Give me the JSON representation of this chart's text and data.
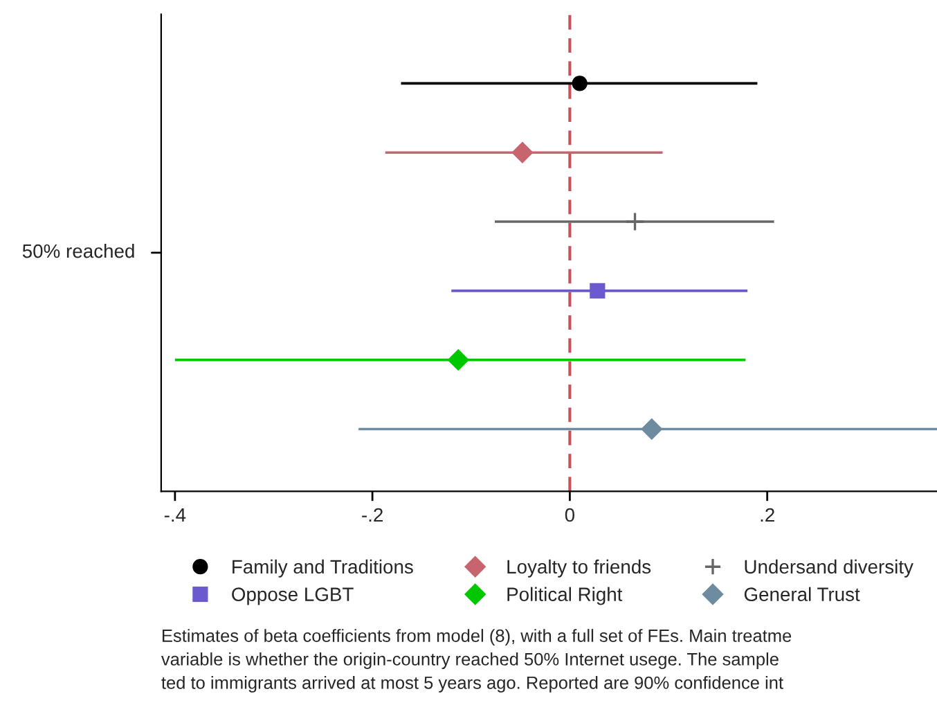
{
  "chart_data": {
    "type": "scatter",
    "orientation": "horizontal",
    "categories": [
      null,
      null,
      null,
      null,
      null,
      null
    ],
    "ylabel": "50% reached",
    "tick_labels": "x",
    "series": [
      {
        "name": "Family and Traditions",
        "color": "#000000",
        "marker": "circle",
        "values": [
          0.01,
          null,
          null,
          null,
          null,
          null
        ],
        "errors": [
          [
            -0.171,
            0.19
          ],
          null,
          null,
          null,
          null,
          null
        ]
      },
      {
        "name": "Loyalty to friends",
        "color": "#c8646e",
        "marker": "diamond",
        "values": [
          null,
          -0.048,
          null,
          null,
          null,
          null
        ],
        "errors": [
          null,
          [
            -0.187,
            0.094
          ],
          null,
          null,
          null,
          null
        ]
      },
      {
        "name": "Undersand diversity",
        "color": "#666666",
        "marker": "cross",
        "values": [
          null,
          null,
          0.066,
          null,
          null,
          null
        ],
        "errors": [
          null,
          null,
          [
            -0.076,
            0.207
          ],
          null,
          null,
          null
        ]
      },
      {
        "name": "Oppose LGBT",
        "color": "#6a5acd",
        "marker": "square",
        "values": [
          null,
          null,
          null,
          0.028,
          null,
          null
        ],
        "errors": [
          null,
          null,
          null,
          [
            -0.12,
            0.18
          ],
          null,
          null
        ]
      },
      {
        "name": "Political Right",
        "color": "#00c800",
        "marker": "diamond",
        "values": [
          null,
          null,
          null,
          null,
          -0.113,
          null
        ],
        "errors": [
          null,
          null,
          null,
          null,
          [
            -0.4,
            0.178
          ],
          null
        ]
      },
      {
        "name": "General Trust",
        "color": "#6e8ca0",
        "marker": "diamond",
        "values": [
          null,
          null,
          null,
          null,
          null,
          0.083
        ],
        "errors": [
          null,
          null,
          null,
          null,
          null,
          [
            -0.214,
            0.372
          ]
        ]
      }
    ],
    "xlim": [
      -0.414,
      0.372
    ],
    "xticks": [
      {
        "value": -0.4,
        "label": "-.4"
      },
      {
        "value": -0.2,
        "label": "-.2"
      },
      0,
      {
        "value": 0.2,
        "label": ".2"
      }
    ],
    "ref_lines": [
      {
        "axis": "x",
        "value": 0,
        "color": "#c8505a",
        "line_style": "dashed"
      }
    ],
    "grid": false,
    "legend": "bottom",
    "annotations": [
      "Estimates of beta coefficients from model (8), with a full set of FEs. Main treatme",
      "variable is whether the origin-country reached 50% Internet usege. The sample",
      "ted to immigrants arrived at most 5 years ago. Reported are 90% confidence int"
    ]
  }
}
